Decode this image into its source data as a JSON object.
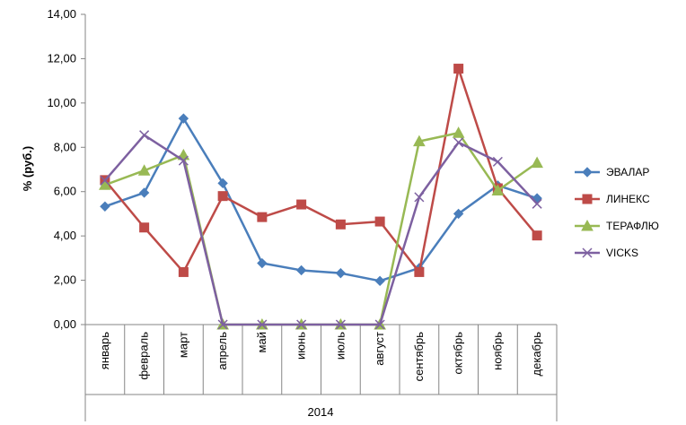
{
  "chart_data": {
    "type": "line",
    "ylabel": "% (руб.)",
    "xlabel": "",
    "group_label": "2014",
    "ylim": [
      0,
      14
    ],
    "yticks": [
      "0,00",
      "2,00",
      "4,00",
      "6,00",
      "8,00",
      "10,00",
      "12,00",
      "14,00"
    ],
    "categories": [
      "январь",
      "февраль",
      "март",
      "апрель",
      "май",
      "июнь",
      "июль",
      "август",
      "сентябрь",
      "октябрь",
      "ноябрь",
      "декабрь"
    ],
    "grid": false,
    "legend_position": "right",
    "series": [
      {
        "name": "ЭВАЛАР",
        "color": "#4a7ebb",
        "marker": "diamond",
        "values": [
          5.33,
          5.95,
          9.3,
          6.38,
          2.77,
          2.45,
          2.32,
          1.97,
          2.55,
          5.0,
          6.28,
          5.7
        ]
      },
      {
        "name": "ЛИНЕКС",
        "color": "#be4b48",
        "marker": "square",
        "values": [
          6.52,
          4.38,
          2.37,
          5.8,
          4.85,
          5.42,
          4.52,
          4.65,
          2.37,
          11.55,
          6.15,
          4.02
        ]
      },
      {
        "name": "ТЕРАФЛЮ",
        "color": "#98b954",
        "marker": "triangle",
        "values": [
          6.3,
          6.95,
          7.65,
          0,
          0,
          0,
          0,
          0,
          8.27,
          8.65,
          6.05,
          7.3
        ]
      },
      {
        "name": "VICKS",
        "color": "#7d60a0",
        "marker": "x",
        "values": [
          6.5,
          8.55,
          7.4,
          0,
          0,
          0,
          0,
          0,
          5.75,
          8.22,
          7.35,
          5.45
        ]
      }
    ]
  }
}
